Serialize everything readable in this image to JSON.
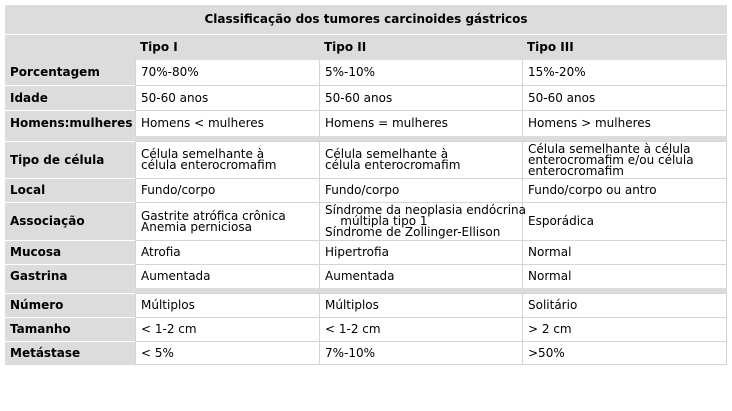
{
  "title": "Classificação dos tumores carcinoides gástricos",
  "columns": [
    "",
    "Tipo I",
    "Tipo II",
    "Tipo III"
  ],
  "groups": [
    [
      {
        "label": "Porcentagem",
        "cells": [
          "70%-80%",
          "5%-10%",
          "15%-20%"
        ]
      },
      {
        "label": "Idade",
        "cells": [
          "50-60 anos",
          "50-60 anos",
          "50-60 anos"
        ]
      },
      {
        "label": "Homens:mulheres",
        "cells": [
          "Homens < mulheres",
          "Homens = mulheres",
          "Homens > mulheres"
        ]
      }
    ],
    [
      {
        "label": "Tipo de célula",
        "cells": [
          "Célula semelhante à\ncélula enterocromafim",
          "Célula semelhante à\ncélula enterocromafim",
          "Célula semelhante à célula\nenterocromafim e/ou célula\nenterocromafim"
        ]
      },
      {
        "label": "Local",
        "cells": [
          "Fundo/corpo",
          "Fundo/corpo",
          "Fundo/corpo ou antro"
        ]
      },
      {
        "label": "Associação",
        "cells": [
          "Gastrite atrófica crônica\nAnemia perniciosa",
          "Síndrome da neoplasia endócrina\n    múltipla tipo 1\nSíndrome de Zollinger-Ellison",
          "Esporádica"
        ]
      },
      {
        "label": "Mucosa",
        "cells": [
          "Atrofia",
          "Hipertrofia",
          "Normal"
        ]
      },
      {
        "label": "Gastrina",
        "cells": [
          "Aumentada",
          "Aumentada",
          "Normal"
        ]
      }
    ],
    [
      {
        "label": "Número",
        "cells": [
          "Múltiplos",
          "Múltiplos",
          "Solitário"
        ]
      },
      {
        "label": "Tamanho",
        "cells": [
          "< 1-2 cm",
          "< 1-2 cm",
          "> 2 cm"
        ]
      },
      {
        "label": "Metástase",
        "cells": [
          "< 5%",
          "7%-10%",
          ">50%"
        ]
      }
    ]
  ]
}
